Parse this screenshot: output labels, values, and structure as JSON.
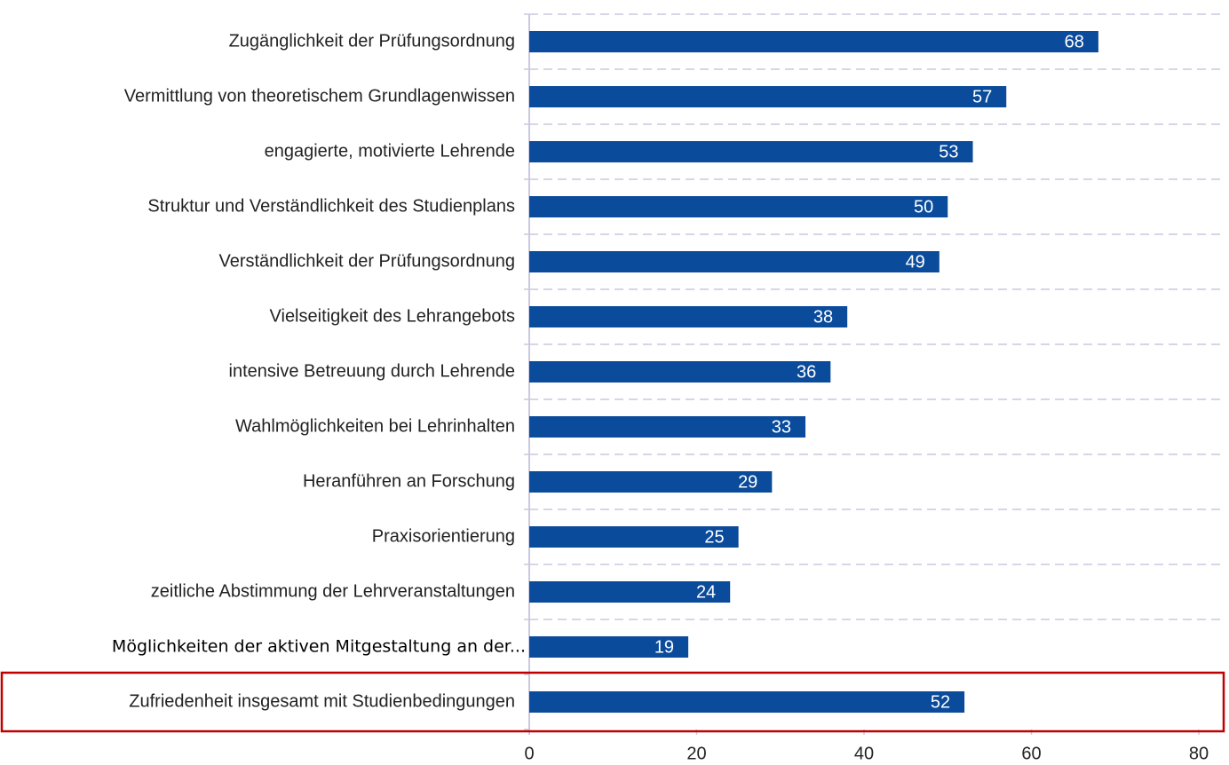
{
  "chart_data": {
    "type": "bar",
    "orientation": "horizontal",
    "categories": [
      "Zugänglichkeit der Prüfungsordnung",
      "Vermittlung von theoretischem Grundlagenwissen",
      "engagierte, motivierte Lehrende",
      "Struktur und Verständlichkeit des  Studienplans",
      "Verständlichkeit der Prüfungsordnung",
      "Vielseitigkeit des Lehrangebots",
      "intensive Betreuung durch Lehrende",
      "Wahlmöglichkeiten bei Lehrinhalten",
      "Heranführen an Forschung",
      "Praxisorientierung",
      "zeitliche Abstimmung der Lehrveranstaltungen",
      "Möglichkeiten der aktiven Mitgestaltung an der...",
      "Zufriedenheit insgesamt mit Studienbedingungen"
    ],
    "values": [
      68,
      57,
      53,
      50,
      49,
      38,
      36,
      33,
      29,
      25,
      24,
      19,
      52
    ],
    "color": "#0b4b9b",
    "xlim": [
      0,
      80
    ],
    "xticks": [
      0,
      20,
      40,
      60,
      80
    ]
  }
}
